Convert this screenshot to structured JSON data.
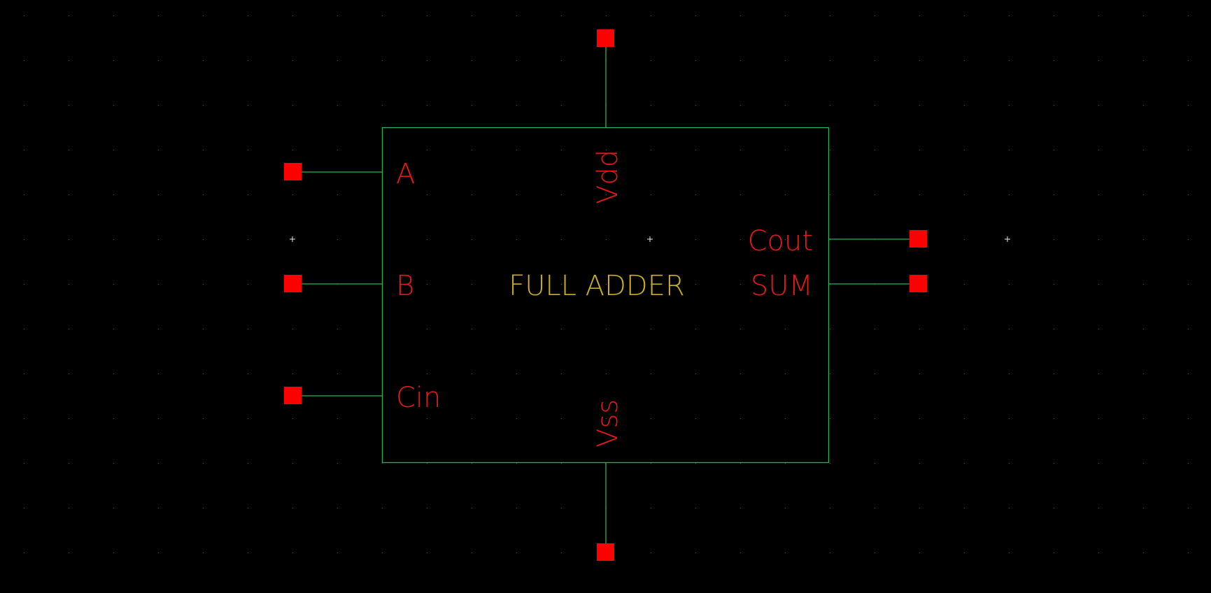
{
  "colors": {
    "background": "#000000",
    "grid_dot": "#5a5a5a",
    "wire": "#22b35a",
    "pin": "#ff0000",
    "pin_label": "#e0191b",
    "title_text": "#c8b01e",
    "origin_mark": "#e8e8e8"
  },
  "symbol": {
    "title": "FULL ADDER",
    "pins": {
      "a": "A",
      "b": "B",
      "cin": "Cin",
      "cout": "Cout",
      "sum": "SUM",
      "vdd": "Vdd",
      "vss": "Vss"
    }
  }
}
